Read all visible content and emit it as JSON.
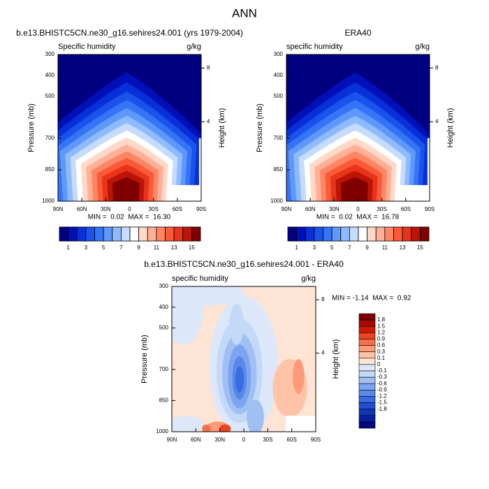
{
  "title": "ANN",
  "chart_data": [
    {
      "type": "contour",
      "title": "b.e13.BHISTC5CN.ne30_g16.sehires24.001 (yrs 1979-2004)",
      "subtitle_left": "Specific humidity",
      "subtitle_right": "g/kg",
      "ylabel": "Pressure (mb)",
      "y2label": "Height (km)",
      "ylim": [
        1000,
        300
      ],
      "yticks": [
        300,
        400,
        500,
        700,
        850,
        1000
      ],
      "y2lim": [
        -1.9,
        9.0
      ],
      "y2ticks": [
        4,
        8
      ],
      "xlim": [
        90,
        -90
      ],
      "xticks": [
        {
          "value": 90,
          "label": "90N"
        },
        {
          "value": 60,
          "label": "60N"
        },
        {
          "value": 30,
          "label": "30N"
        },
        0,
        {
          "value": -30,
          "label": "30S"
        },
        {
          "value": -60,
          "label": "60S"
        },
        {
          "value": -90,
          "label": "90S"
        }
      ],
      "stats": "MIN =  0.02  MAX =  16.30",
      "colorbar": {
        "orientation": "horizontal",
        "lim": [
          0,
          16
        ],
        "labels": [
          1,
          3,
          5,
          7,
          9,
          11,
          13,
          15
        ],
        "colors": [
          "#000080",
          "#0010b8",
          "#0830d8",
          "#1a52ec",
          "#3575f5",
          "#5e98fb",
          "#8ebaff",
          "#c6dcff",
          "#ffffff",
          "#ffd9c8",
          "#ffb096",
          "#ff8664",
          "#fa5a38",
          "#e8341a",
          "#bc1406",
          "#800000"
        ]
      }
    },
    {
      "type": "contour",
      "title": "ERA40",
      "subtitle_left": "specific humidity",
      "subtitle_right": "g/kg",
      "ylabel": "Pressure (mb)",
      "y2label": "Height (km)",
      "ylim": [
        1000,
        300
      ],
      "yticks": [
        300,
        400,
        500,
        700,
        850,
        1000
      ],
      "y2lim": [
        -1.9,
        9.0
      ],
      "y2ticks": [
        4,
        8
      ],
      "xlim": [
        90,
        -90
      ],
      "xticks": [
        {
          "value": 90,
          "label": "90N"
        },
        {
          "value": 60,
          "label": "60N"
        },
        {
          "value": 30,
          "label": "30N"
        },
        0,
        {
          "value": -30,
          "label": "30S"
        },
        {
          "value": -60,
          "label": "60S"
        },
        {
          "value": -90,
          "label": "90S"
        }
      ],
      "stats": "MIN =  0.02  MAX =  16.78",
      "colorbar": {
        "orientation": "horizontal",
        "lim": [
          0,
          16
        ],
        "labels": [
          1,
          3,
          5,
          7,
          9,
          11,
          13,
          15
        ],
        "colors": [
          "#000080",
          "#0010b8",
          "#0830d8",
          "#1a52ec",
          "#3575f5",
          "#5e98fb",
          "#8ebaff",
          "#c6dcff",
          "#ffffff",
          "#ffd9c8",
          "#ffb096",
          "#ff8664",
          "#fa5a38",
          "#e8341a",
          "#bc1406",
          "#800000"
        ]
      }
    },
    {
      "type": "contour",
      "title": "b.e13.BHISTC5CN.ne30_g16.sehires24.001 - ERA40",
      "subtitle_left": "specific humidity",
      "subtitle_right": "g/kg",
      "ylabel": "Pressure (mb)",
      "y2label": "Height (km)",
      "ylim": [
        1000,
        300
      ],
      "yticks": [
        300,
        400,
        500,
        700,
        850,
        1000
      ],
      "y2lim": [
        -1.9,
        9.0
      ],
      "y2ticks": [
        4,
        8
      ],
      "xlim": [
        90,
        -90
      ],
      "xticks": [
        {
          "value": 90,
          "label": "90N"
        },
        {
          "value": 60,
          "label": "60N"
        },
        {
          "value": 30,
          "label": "30N"
        },
        0,
        {
          "value": -30,
          "label": "30S"
        },
        {
          "value": -60,
          "label": "60S"
        },
        {
          "value": -90,
          "label": "90S"
        }
      ],
      "stats": "MIN = -1.14  MAX =  0.92",
      "colorbar": {
        "orientation": "vertical",
        "labels": [
          1.8,
          1.5,
          1.2,
          0.9,
          0.6,
          0.3,
          0.1,
          0,
          -0.1,
          -0.3,
          -0.6,
          -0.9,
          -1.2,
          -1.5,
          -1.8
        ],
        "colors": [
          "#7f0000",
          "#a80800",
          "#d01a00",
          "#e84520",
          "#f87048",
          "#ff9a78",
          "#ffc4a8",
          "#fde4d4",
          "#dce8fa",
          "#c4d8f8",
          "#a0bff3",
          "#7da4ee",
          "#5a88ea",
          "#3a6be0",
          "#2050d0",
          "#1035b8",
          "#0820a0",
          "#000a80"
        ]
      }
    }
  ]
}
